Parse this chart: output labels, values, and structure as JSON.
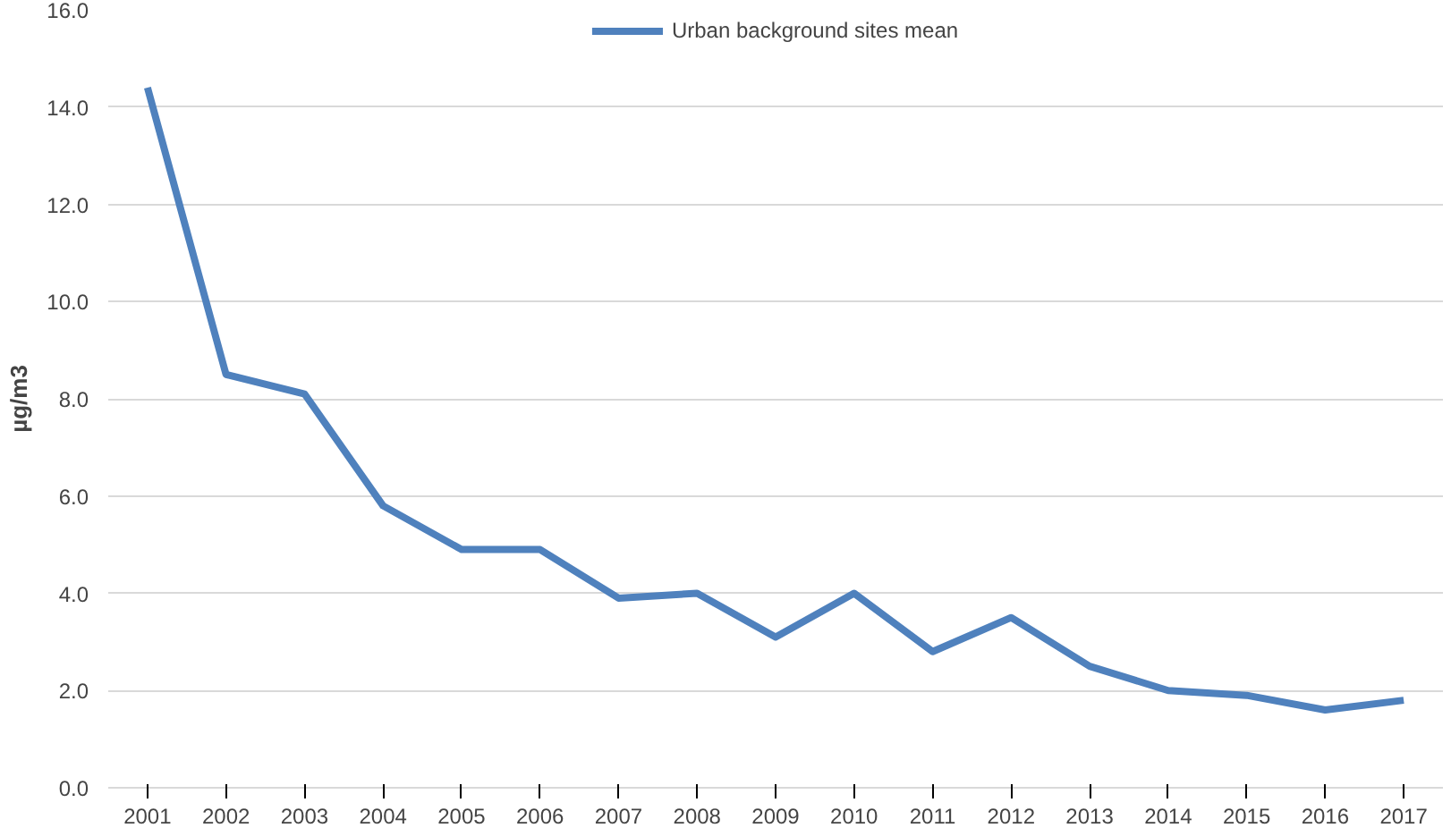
{
  "chart_data": {
    "type": "line",
    "ylabel": "µg/m3",
    "categories": [
      "2001",
      "2002",
      "2003",
      "2004",
      "2005",
      "2006",
      "2007",
      "2008",
      "2009",
      "2010",
      "2011",
      "2012",
      "2013",
      "2014",
      "2015",
      "2016",
      "2017"
    ],
    "series": [
      {
        "name": "Urban background sites mean",
        "color": "#4f81bd",
        "values": [
          14.4,
          8.5,
          8.1,
          5.8,
          4.9,
          4.9,
          3.9,
          4.0,
          3.1,
          4.0,
          2.8,
          3.5,
          2.5,
          2.0,
          1.9,
          1.6,
          1.8
        ]
      }
    ],
    "ylim": [
      0,
      16
    ],
    "yticks": [
      {
        "value": 0,
        "label": "0.0"
      },
      {
        "value": 2,
        "label": "2.0"
      },
      {
        "value": 4,
        "label": "4.0"
      },
      {
        "value": 6,
        "label": "6.0"
      },
      {
        "value": 8,
        "label": "8.0"
      },
      {
        "value": 10,
        "label": "10.0"
      },
      {
        "value": 12,
        "label": "12.0"
      },
      {
        "value": 14,
        "label": "14.0"
      },
      {
        "value": 16,
        "label": "16.0"
      }
    ],
    "grid": "y",
    "legend": "top",
    "line_style": "solid",
    "marker": "none"
  }
}
